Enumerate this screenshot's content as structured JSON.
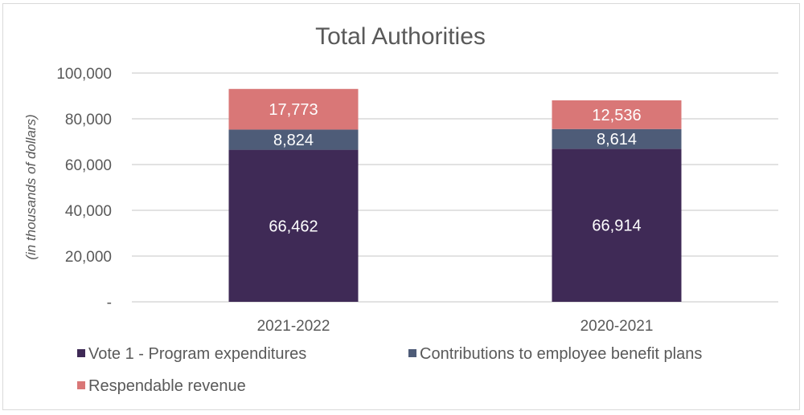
{
  "chart_data": {
    "type": "bar",
    "stacked": true,
    "title": "Total Authorities",
    "xlabel": "",
    "ylabel": "(in thousands of dollars)",
    "ylim": [
      0,
      100000
    ],
    "yticks": [
      0,
      20000,
      40000,
      60000,
      80000,
      100000
    ],
    "ytick_labels": [
      "-",
      "20,000",
      "40,000",
      "60,000",
      "80,000",
      "100,000"
    ],
    "grid": true,
    "categories": [
      "2021-2022",
      "2020-2021"
    ],
    "series": [
      {
        "name": "Vote 1 - Program expenditures",
        "color": "#3f2a56",
        "values": [
          66462,
          66914
        ],
        "labels": [
          "66,462",
          "66,914"
        ]
      },
      {
        "name": "Contributions to employee benefit plans",
        "color": "#4e5c78",
        "values": [
          8824,
          8614
        ],
        "labels": [
          "8,824",
          "8,614"
        ]
      },
      {
        "name": "Respendable revenue",
        "color": "#d97777",
        "values": [
          17773,
          12536
        ],
        "labels": [
          "17,773",
          "12,536"
        ]
      }
    ],
    "legend_position": "bottom"
  }
}
